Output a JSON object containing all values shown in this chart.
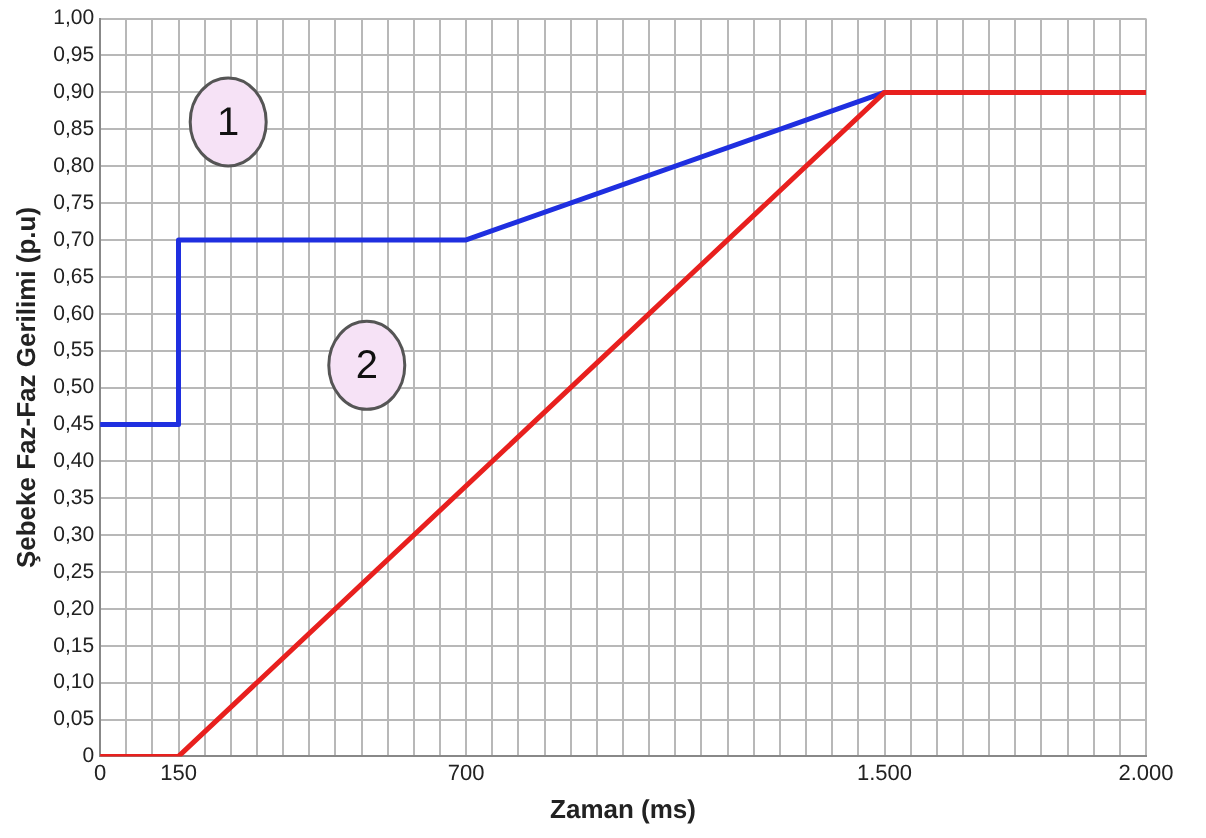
{
  "chart_data": {
    "type": "line",
    "xlabel": "Zaman (ms)",
    "ylabel": "Şebeke Faz-Faz Gerilimi (p.u)",
    "series": [
      {
        "color": "#1f2fe0",
        "x": [
          0,
          150,
          150,
          700,
          1500
        ],
        "values": [
          0.45,
          0.45,
          0.7,
          0.7,
          0.9
        ]
      },
      {
        "color": "#e8201e",
        "x": [
          0,
          150,
          1500,
          2000
        ],
        "values": [
          0,
          0,
          0.9,
          0.9
        ]
      }
    ],
    "xlim": [
      0,
      2000
    ],
    "xticks": [
      0,
      {
        "value": 50,
        "label": null
      },
      {
        "value": 100,
        "label": null
      },
      150,
      {
        "value": 200,
        "label": null
      },
      {
        "value": 250,
        "label": null
      },
      {
        "value": 300,
        "label": null
      },
      {
        "value": 350,
        "label": null
      },
      {
        "value": 400,
        "label": null
      },
      {
        "value": 450,
        "label": null
      },
      {
        "value": 500,
        "label": null
      },
      {
        "value": 550,
        "label": null
      },
      {
        "value": 600,
        "label": null
      },
      {
        "value": 650,
        "label": null
      },
      700,
      {
        "value": 750,
        "label": null
      },
      {
        "value": 800,
        "label": null
      },
      {
        "value": 850,
        "label": null
      },
      {
        "value": 900,
        "label": null
      },
      {
        "value": 950,
        "label": null
      },
      {
        "value": 1000,
        "label": null
      },
      {
        "value": 1050,
        "label": null
      },
      {
        "value": 1100,
        "label": null
      },
      {
        "value": 1150,
        "label": null
      },
      {
        "value": 1200,
        "label": null
      },
      {
        "value": 1250,
        "label": null
      },
      {
        "value": 1300,
        "label": null
      },
      {
        "value": 1350,
        "label": null
      },
      {
        "value": 1400,
        "label": null
      },
      {
        "value": 1450,
        "label": null
      },
      {
        "value": 1500,
        "label": "1.500"
      },
      {
        "value": 1550,
        "label": null
      },
      {
        "value": 1600,
        "label": null
      },
      {
        "value": 1650,
        "label": null
      },
      {
        "value": 1700,
        "label": null
      },
      {
        "value": 1750,
        "label": null
      },
      {
        "value": 1800,
        "label": null
      },
      {
        "value": 1850,
        "label": null
      },
      {
        "value": 1900,
        "label": null
      },
      {
        "value": 1950,
        "label": null
      },
      {
        "value": 2000,
        "label": "2.000"
      }
    ],
    "ylim": [
      0,
      1
    ],
    "yticks": [
      0,
      {
        "value": 0.05,
        "label": "0,05"
      },
      {
        "value": 0.1,
        "label": "0,10"
      },
      {
        "value": 0.15,
        "label": "0,15"
      },
      {
        "value": 0.2,
        "label": "0,20"
      },
      {
        "value": 0.25,
        "label": "0,25"
      },
      {
        "value": 0.3,
        "label": "0,30"
      },
      {
        "value": 0.35,
        "label": "0,35"
      },
      {
        "value": 0.4,
        "label": "0,40"
      },
      {
        "value": 0.45,
        "label": "0,45"
      },
      {
        "value": 0.5,
        "label": "0,50"
      },
      {
        "value": 0.55,
        "label": "0,55"
      },
      {
        "value": 0.6,
        "label": "0,60"
      },
      {
        "value": 0.65,
        "label": "0,65"
      },
      {
        "value": 0.7,
        "label": "0,70"
      },
      {
        "value": 0.75,
        "label": "0,75"
      },
      {
        "value": 0.8,
        "label": "0,80"
      },
      {
        "value": 0.85,
        "label": "0,85"
      },
      {
        "value": 0.9,
        "label": "0,90"
      },
      {
        "value": 0.95,
        "label": "0,95"
      },
      {
        "value": 1,
        "label": "1,00"
      }
    ],
    "grid": true,
    "marker": "none",
    "line_style": "solid",
    "annotations": [
      {
        "text": "1",
        "x": 245,
        "y": 0.86
      },
      {
        "text": "2",
        "x": 510,
        "y": 0.53
      }
    ]
  }
}
